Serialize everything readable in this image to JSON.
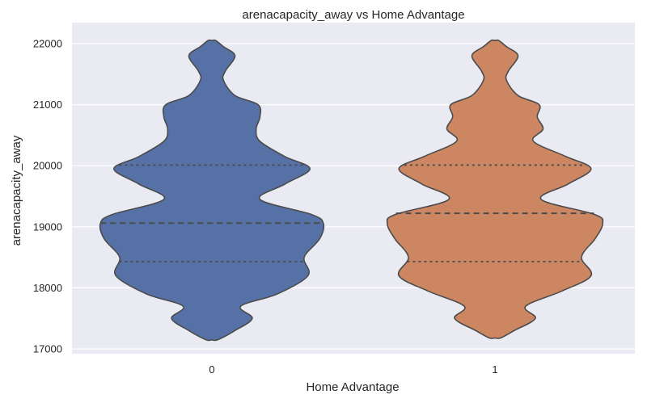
{
  "chart_data": {
    "type": "violin",
    "title": "arenacapacity_away vs Home Advantage",
    "xlabel": "Home Advantage",
    "ylabel": "arenacapacity_away",
    "categories": [
      "0",
      "1"
    ],
    "ylim": [
      16900,
      22250
    ],
    "yticks": [
      17000,
      18000,
      19000,
      20000,
      21000,
      22000
    ],
    "grid": true,
    "inner": "quartile",
    "series": [
      {
        "category": "0",
        "color": "#5571a6",
        "quartiles": {
          "q1": 18430,
          "median": 19060,
          "q3": 20010
        },
        "density_profile": [
          {
            "y": 17150,
            "w": 0.03
          },
          {
            "y": 17300,
            "w": 0.12
          },
          {
            "y": 17500,
            "w": 0.21
          },
          {
            "y": 17700,
            "w": 0.15
          },
          {
            "y": 17900,
            "w": 0.34
          },
          {
            "y": 18200,
            "w": 0.5
          },
          {
            "y": 18500,
            "w": 0.48
          },
          {
            "y": 18800,
            "w": 0.56
          },
          {
            "y": 19050,
            "w": 0.58
          },
          {
            "y": 19200,
            "w": 0.52
          },
          {
            "y": 19450,
            "w": 0.25
          },
          {
            "y": 19700,
            "w": 0.38
          },
          {
            "y": 19950,
            "w": 0.51
          },
          {
            "y": 20150,
            "w": 0.38
          },
          {
            "y": 20400,
            "w": 0.25
          },
          {
            "y": 20600,
            "w": 0.23
          },
          {
            "y": 20800,
            "w": 0.25
          },
          {
            "y": 21000,
            "w": 0.24
          },
          {
            "y": 21150,
            "w": 0.12
          },
          {
            "y": 21400,
            "w": 0.06
          },
          {
            "y": 21550,
            "w": 0.07
          },
          {
            "y": 21800,
            "w": 0.12
          },
          {
            "y": 21950,
            "w": 0.06
          },
          {
            "y": 22050,
            "w": 0.02
          }
        ]
      },
      {
        "category": "1",
        "color": "#cc8662",
        "quartiles": {
          "q1": 18430,
          "median": 19220,
          "q3": 20010
        },
        "density_profile": [
          {
            "y": 17180,
            "w": 0.03
          },
          {
            "y": 17300,
            "w": 0.1
          },
          {
            "y": 17500,
            "w": 0.21
          },
          {
            "y": 17700,
            "w": 0.16
          },
          {
            "y": 17950,
            "w": 0.35
          },
          {
            "y": 18200,
            "w": 0.5
          },
          {
            "y": 18500,
            "w": 0.45
          },
          {
            "y": 18800,
            "w": 0.52
          },
          {
            "y": 19050,
            "w": 0.56
          },
          {
            "y": 19200,
            "w": 0.52
          },
          {
            "y": 19450,
            "w": 0.24
          },
          {
            "y": 19700,
            "w": 0.38
          },
          {
            "y": 19950,
            "w": 0.5
          },
          {
            "y": 20150,
            "w": 0.37
          },
          {
            "y": 20400,
            "w": 0.2
          },
          {
            "y": 20600,
            "w": 0.25
          },
          {
            "y": 20800,
            "w": 0.22
          },
          {
            "y": 21000,
            "w": 0.23
          },
          {
            "y": 21150,
            "w": 0.12
          },
          {
            "y": 21400,
            "w": 0.06
          },
          {
            "y": 21550,
            "w": 0.07
          },
          {
            "y": 21800,
            "w": 0.12
          },
          {
            "y": 21950,
            "w": 0.06
          },
          {
            "y": 22050,
            "w": 0.02
          }
        ]
      }
    ]
  }
}
